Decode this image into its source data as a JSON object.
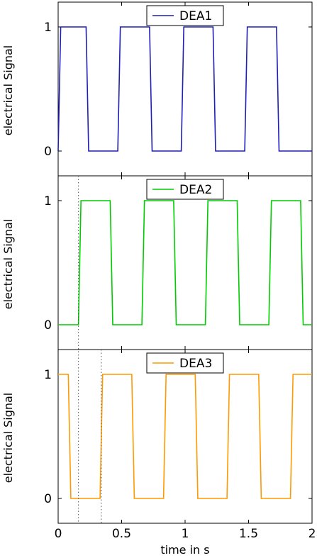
{
  "chart_data": [
    {
      "type": "line",
      "xlabel": "",
      "ylabel": "electrical Signal",
      "xlim": [
        0,
        2
      ],
      "ylim": [
        -0.2,
        1.2
      ],
      "yticks": [
        0,
        1
      ],
      "xticks": [
        0,
        0.5,
        1,
        1.5,
        2
      ],
      "xtick_labels_visible": false,
      "legend_position": "top-center",
      "grid": false,
      "series": [
        {
          "name": "DEA1",
          "color": "#1f1fb4",
          "x": [
            0,
            0.02,
            0.22,
            0.24,
            0.47,
            0.49,
            0.72,
            0.74,
            0.97,
            0.99,
            1.22,
            1.24,
            1.47,
            1.49,
            1.72,
            1.74,
            2.0
          ],
          "y": [
            0,
            1,
            1,
            0,
            0,
            1,
            1,
            0,
            0,
            1,
            1,
            0,
            0,
            1,
            1,
            0,
            0
          ]
        }
      ]
    },
    {
      "type": "line",
      "xlabel": "",
      "ylabel": "electrical Signal",
      "xlim": [
        0,
        2
      ],
      "ylim": [
        -0.2,
        1.2
      ],
      "yticks": [
        0,
        1
      ],
      "xticks": [
        0,
        0.5,
        1,
        1.5,
        2
      ],
      "xtick_labels_visible": false,
      "legend_position": "top-center",
      "grid": false,
      "series": [
        {
          "name": "DEA2",
          "color": "#00cc00",
          "x": [
            0,
            0.16,
            0.18,
            0.41,
            0.43,
            0.66,
            0.68,
            0.91,
            0.93,
            1.16,
            1.18,
            1.41,
            1.43,
            1.66,
            1.68,
            1.91,
            1.93,
            2.0
          ],
          "y": [
            0,
            0,
            1,
            1,
            0,
            0,
            1,
            1,
            0,
            0,
            1,
            1,
            0,
            0,
            1,
            1,
            0,
            0
          ]
        }
      ]
    },
    {
      "type": "line",
      "xlabel": "time in s",
      "ylabel": "electrical Signal",
      "xlim": [
        0,
        2
      ],
      "ylim": [
        -0.2,
        1.2
      ],
      "yticks": [
        0,
        1
      ],
      "xticks": [
        0,
        0.5,
        1,
        1.5,
        2
      ],
      "xtick_labels": [
        "0",
        "0.5",
        "1",
        "1.5",
        "2"
      ],
      "xtick_labels_visible": true,
      "legend_position": "top-center",
      "grid": false,
      "series": [
        {
          "name": "DEA3",
          "color": "#ff9900",
          "x": [
            0,
            0.08,
            0.1,
            0.33,
            0.35,
            0.58,
            0.6,
            0.83,
            0.85,
            1.08,
            1.1,
            1.33,
            1.35,
            1.58,
            1.6,
            1.83,
            1.85,
            2.0
          ],
          "y": [
            1,
            1,
            0,
            0,
            1,
            1,
            0,
            0,
            1,
            1,
            0,
            0,
            1,
            1,
            0,
            0,
            1,
            1
          ]
        }
      ]
    }
  ],
  "reference_lines": [
    {
      "x": 0.16,
      "from_panel": 1,
      "to_panel": 2,
      "color": "#555555"
    },
    {
      "x": 0.34,
      "from_panel": 2,
      "to_panel": 2,
      "color": "#555555"
    }
  ]
}
